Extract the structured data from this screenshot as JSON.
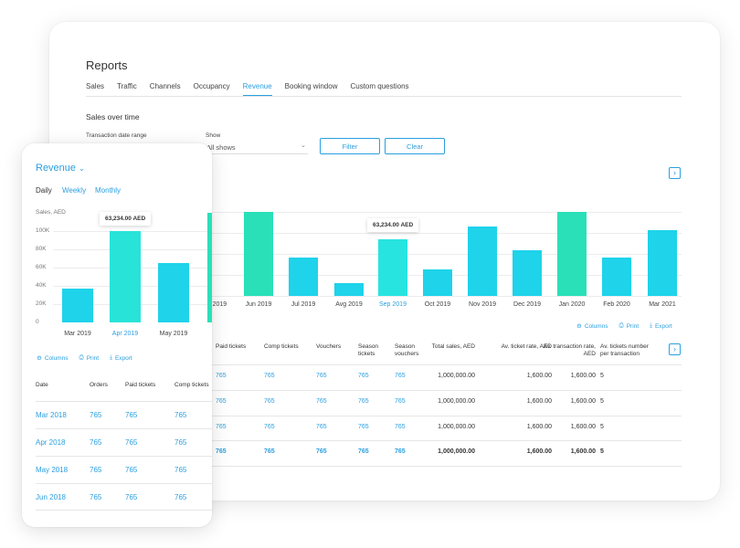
{
  "desktop": {
    "title": "Reports",
    "tabs": [
      {
        "label": "Sales",
        "active": false
      },
      {
        "label": "Traffic",
        "active": false
      },
      {
        "label": "Channels",
        "active": false
      },
      {
        "label": "Occupancy",
        "active": false
      },
      {
        "label": "Revenue",
        "active": true
      },
      {
        "label": "Booking window",
        "active": false
      },
      {
        "label": "Custom questions",
        "active": false
      }
    ],
    "section_title": "Sales over time",
    "filters": {
      "date_range_label": "Transaction date range",
      "show_label": "Show",
      "show_value": "All shows",
      "filter_button": "Filter",
      "clear_button": "Clear"
    },
    "tooltip": "63,234.00 AED",
    "actions": {
      "columns": "Columns",
      "print": "Print",
      "export": "Export"
    },
    "table": {
      "headers": [
        "Paid tickets",
        "Comp tickets",
        "Vouchers",
        "Season tickets",
        "Season vouchers",
        "Total sales, AED",
        "Av. ticket rate, AED",
        "Av. transaction rate, AED",
        "Av. tickets number per transaction"
      ],
      "rows": [
        [
          "765",
          "765",
          "765",
          "765",
          "765",
          "1,000,000.00",
          "1,600.00",
          "1,600.00",
          "5"
        ],
        [
          "765",
          "765",
          "765",
          "765",
          "765",
          "1,000,000.00",
          "1,600.00",
          "1,600.00",
          "5"
        ],
        [
          "765",
          "765",
          "765",
          "765",
          "765",
          "1,000,000.00",
          "1,600.00",
          "1,600.00",
          "5"
        ],
        [
          "765",
          "765",
          "765",
          "765",
          "765",
          "1,000,000.00",
          "1,600.00",
          "1,600.00",
          "5"
        ]
      ]
    }
  },
  "mobile": {
    "title": "Revenue",
    "periods": [
      {
        "label": "Daily",
        "active": true
      },
      {
        "label": "Weekly",
        "active": false
      },
      {
        "label": "Monthly",
        "active": false
      }
    ],
    "ylabel": "Sales, AED",
    "tooltip": "63,234.00 AED",
    "actions": {
      "columns": "Columns",
      "print": "Print",
      "export": "Export"
    },
    "table": {
      "headers": [
        "Date",
        "Orders",
        "Paid tickets",
        "Comp tickets"
      ],
      "rows": [
        [
          "Mar 2018",
          "765",
          "765",
          "765"
        ],
        [
          "Apr 2018",
          "765",
          "765",
          "765"
        ],
        [
          "May 2018",
          "765",
          "765",
          "765"
        ],
        [
          "Jun 2018",
          "765",
          "765",
          "765"
        ]
      ]
    }
  },
  "chart_data": [
    {
      "type": "bar",
      "name": "desktop-sales-over-time",
      "categories": [
        "Apr 2019",
        "Jun 2019",
        "Jul 2019",
        "Avg 2019",
        "Sep 2019",
        "Oct 2019",
        "Nov 2019",
        "Dec 2019",
        "Jan 2020",
        "Feb 2020",
        "Mar 2021"
      ],
      "values": [
        63,
        115,
        52,
        18,
        78,
        36,
        95,
        63,
        115,
        52,
        90
      ],
      "highlight": "Sep 2019",
      "colors": {
        "bar": "#1ed3ea",
        "peak": "#2ae0b8",
        "highlight": "#28e4e0"
      },
      "ylim": [
        0,
        115
      ]
    },
    {
      "type": "bar",
      "name": "mobile-revenue",
      "categories": [
        "Mar 2019",
        "Apr 2019",
        "May 2019"
      ],
      "values": [
        37,
        100,
        65
      ],
      "highlight": "Apr 2019",
      "yticks": [
        "100K",
        "80K",
        "60K",
        "40K",
        "20K",
        "0"
      ],
      "ylabel": "Sales, AED",
      "ylim": [
        0,
        100
      ]
    }
  ]
}
